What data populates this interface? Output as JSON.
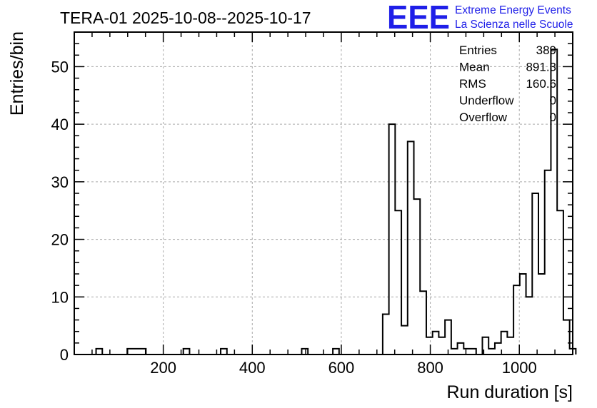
{
  "chart_data": {
    "type": "bar",
    "title": "TERA-01 2025-10-08--2025-10-17",
    "xlabel": "Run duration [s]",
    "ylabel": "Entries/bin",
    "xlim": [
      0,
      1120
    ],
    "ylim": [
      0,
      56
    ],
    "bin_width": 14,
    "xticks": [
      200,
      400,
      600,
      800,
      1000
    ],
    "yticks": [
      0,
      10,
      20,
      30,
      40,
      50
    ],
    "grid": true,
    "bins": [
      {
        "x": 56,
        "value": 1
      },
      {
        "x": 126,
        "value": 1
      },
      {
        "x": 140,
        "value": 1
      },
      {
        "x": 154,
        "value": 1
      },
      {
        "x": 252,
        "value": 1
      },
      {
        "x": 336,
        "value": 1
      },
      {
        "x": 518,
        "value": 1
      },
      {
        "x": 588,
        "value": 1
      },
      {
        "x": 700,
        "value": 7
      },
      {
        "x": 714,
        "value": 40
      },
      {
        "x": 728,
        "value": 25
      },
      {
        "x": 742,
        "value": 5
      },
      {
        "x": 756,
        "value": 37
      },
      {
        "x": 770,
        "value": 27
      },
      {
        "x": 784,
        "value": 11
      },
      {
        "x": 798,
        "value": 3
      },
      {
        "x": 812,
        "value": 4
      },
      {
        "x": 826,
        "value": 3
      },
      {
        "x": 840,
        "value": 6
      },
      {
        "x": 854,
        "value": 1
      },
      {
        "x": 868,
        "value": 2
      },
      {
        "x": 882,
        "value": 1
      },
      {
        "x": 896,
        "value": 1
      },
      {
        "x": 924,
        "value": 3
      },
      {
        "x": 938,
        "value": 1
      },
      {
        "x": 952,
        "value": 2
      },
      {
        "x": 966,
        "value": 4
      },
      {
        "x": 980,
        "value": 3
      },
      {
        "x": 994,
        "value": 12
      },
      {
        "x": 1008,
        "value": 14
      },
      {
        "x": 1022,
        "value": 10
      },
      {
        "x": 1036,
        "value": 28
      },
      {
        "x": 1050,
        "value": 14
      },
      {
        "x": 1064,
        "value": 32
      },
      {
        "x": 1078,
        "value": 53
      },
      {
        "x": 1092,
        "value": 25
      },
      {
        "x": 1106,
        "value": 6
      },
      {
        "x": 1120,
        "value": 1
      }
    ],
    "stats": [
      {
        "label": "Entries",
        "value": "389"
      },
      {
        "label": "Mean",
        "value": "891.3"
      },
      {
        "label": "RMS",
        "value": "160.6"
      },
      {
        "label": "Underflow",
        "value": "0"
      },
      {
        "label": "Overflow",
        "value": "0"
      }
    ],
    "line_color": "#000000",
    "grid_color": "#aaaaaa"
  },
  "logo": {
    "text": "EEE",
    "line1": "Extreme Energy Events",
    "line2": "La Scienza nelle Scuole",
    "color": "#1f1fe8"
  }
}
